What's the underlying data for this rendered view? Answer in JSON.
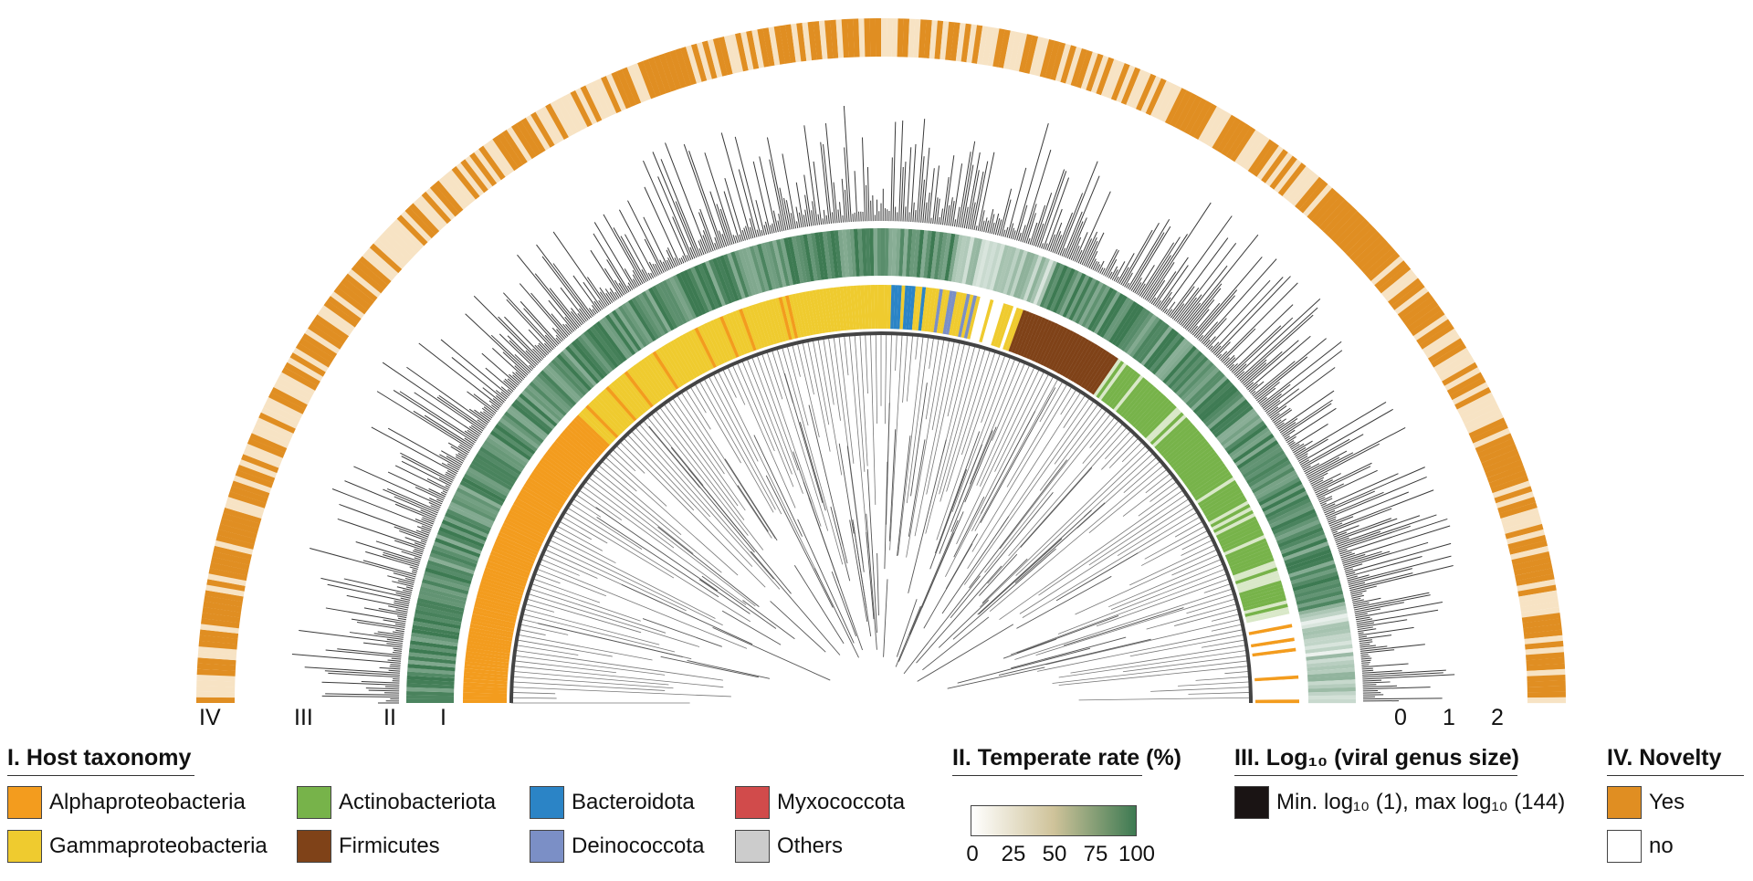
{
  "figure": {
    "ring_labels": [
      "IV",
      "III",
      "II",
      "I"
    ],
    "scale_ticks": [
      "0",
      "1",
      "2"
    ]
  },
  "legend_host": {
    "title": "I. Host taxonomy",
    "items": [
      {
        "label": "Alphaproteobacteria",
        "color": "#f39c1e"
      },
      {
        "label": "Gammaproteobacteria",
        "color": "#efcb2f"
      },
      {
        "label": "Actinobacteriota",
        "color": "#77b34a"
      },
      {
        "label": "Firmicutes",
        "color": "#7f4218"
      },
      {
        "label": "Bacteroidota",
        "color": "#2b84c6"
      },
      {
        "label": "Deinococcota",
        "color": "#7b8fc6"
      },
      {
        "label": "Myxococcota",
        "color": "#d14b4b"
      },
      {
        "label": "Others",
        "color": "#cccccc"
      }
    ]
  },
  "legend_temperate": {
    "title": "II. Temperate rate (%)",
    "ticks": [
      "0",
      "25",
      "50",
      "75",
      "100"
    ],
    "color_low": "#ffffff",
    "color_mid": "#cfc39a",
    "color_high": "#3d7a52"
  },
  "legend_genus": {
    "title": "III. Log₁₀ (viral genus size)",
    "item_label": "Min. log₁₀ (1), max log₁₀ (144)",
    "color": "#1a1414"
  },
  "legend_novelty": {
    "title": "IV. Novelty",
    "items": [
      {
        "label": "Yes",
        "color": "#e08e22"
      },
      {
        "label": "no",
        "color": "#ffffff"
      }
    ]
  }
}
